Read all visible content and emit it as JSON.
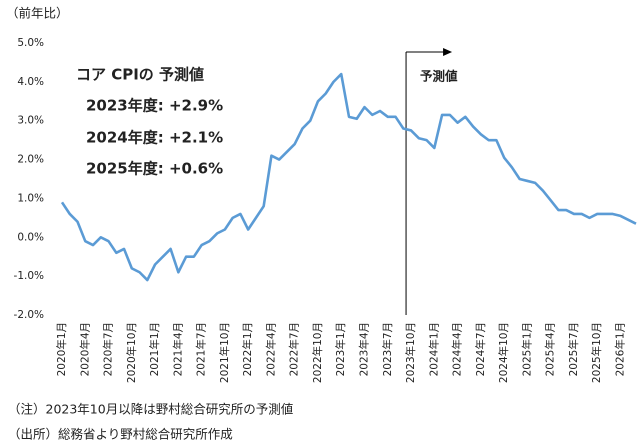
{
  "chart_data": {
    "type": "line",
    "y_label": "（前年比）",
    "annotations": [
      "コア CPIの 予測値",
      "2023年度: +2.9%",
      "2024年度: +2.1%",
      "2025年度: +0.6%"
    ],
    "forecast_label": "予測値",
    "forecast_start": "2023年10月",
    "notes": [
      "（注）2023年10月以降は野村総合研究所の予測値",
      "（出所）総務省より野村総合研究所作成"
    ],
    "categories": [
      "2020年1月",
      null,
      null,
      "2020年4月",
      null,
      null,
      "2020年7月",
      null,
      null,
      "2020年10月",
      null,
      null,
      "2021年1月",
      null,
      null,
      "2021年4月",
      null,
      null,
      "2021年7月",
      null,
      null,
      "2021年10月",
      null,
      null,
      "2022年1月",
      null,
      null,
      "2022年4月",
      null,
      null,
      "2022年7月",
      null,
      null,
      "2022年10月",
      null,
      null,
      "2023年1月",
      null,
      null,
      "2023年4月",
      null,
      null,
      "2023年7月",
      null,
      null,
      "2023年10月",
      null,
      null,
      "2024年1月",
      null,
      null,
      "2024年4月",
      null,
      null,
      "2024年7月",
      null,
      null,
      "2024年10月",
      null,
      null,
      "2025年1月",
      null,
      null,
      "2025年4月",
      null,
      null,
      "2025年7月",
      null,
      null,
      "2025年10月",
      null,
      null,
      "2026年1月",
      null,
      null
    ],
    "series": [
      {
        "color": "#5b9bd5",
        "values": [
          0.9,
          0.6,
          0.4,
          -0.1,
          -0.2,
          0.0,
          -0.1,
          -0.4,
          -0.3,
          -0.8,
          -0.9,
          -1.1,
          -0.7,
          -0.5,
          -0.3,
          -0.9,
          -0.5,
          -0.5,
          -0.2,
          -0.1,
          0.1,
          0.2,
          0.5,
          0.6,
          0.2,
          0.5,
          0.8,
          2.1,
          2.0,
          2.2,
          2.4,
          2.8,
          3.0,
          3.5,
          3.7,
          4.0,
          4.2,
          3.1,
          3.05,
          3.35,
          3.15,
          3.25,
          3.1,
          3.1,
          2.8,
          2.75,
          2.55,
          2.5,
          2.3,
          3.15,
          3.15,
          2.95,
          3.1,
          2.85,
          2.65,
          2.5,
          2.5,
          2.05,
          1.8,
          1.5,
          1.45,
          1.4,
          1.2,
          0.95,
          0.7,
          0.7,
          0.6,
          0.6,
          0.5,
          0.6,
          0.6,
          0.6,
          0.55,
          0.45,
          0.35
        ]
      }
    ],
    "ylim": [
      -2,
      5
    ],
    "yticks": [
      {
        "value": -2,
        "label": "-2.0%"
      },
      {
        "value": -1,
        "label": "-1.0%"
      },
      {
        "value": 0,
        "label": "0.0%"
      },
      {
        "value": 1,
        "label": "1.0%"
      },
      {
        "value": 2,
        "label": "2.0%"
      },
      {
        "value": 3,
        "label": "3.0%"
      },
      {
        "value": 4,
        "label": "4.0%"
      },
      {
        "value": 5,
        "label": "5.0%"
      }
    ]
  }
}
